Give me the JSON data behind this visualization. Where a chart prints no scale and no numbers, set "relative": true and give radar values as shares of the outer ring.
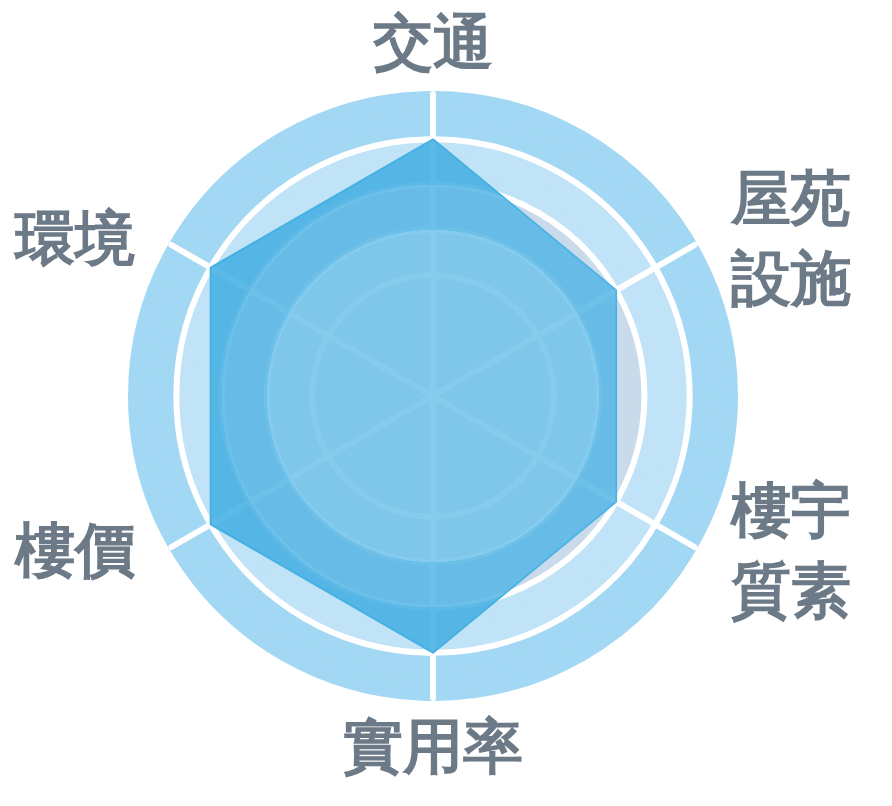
{
  "chart_data": {
    "type": "radar",
    "categories": [
      "交通",
      "屋苑設施",
      "樓宇質素",
      "實用率",
      "樓價",
      "環境"
    ],
    "series": [
      {
        "color": "#46b0e3",
        "values": [
          0.85,
          0.7,
          0.7,
          0.85,
          0.85,
          0.85
        ]
      }
    ],
    "relative": true,
    "grid": true
  }
}
